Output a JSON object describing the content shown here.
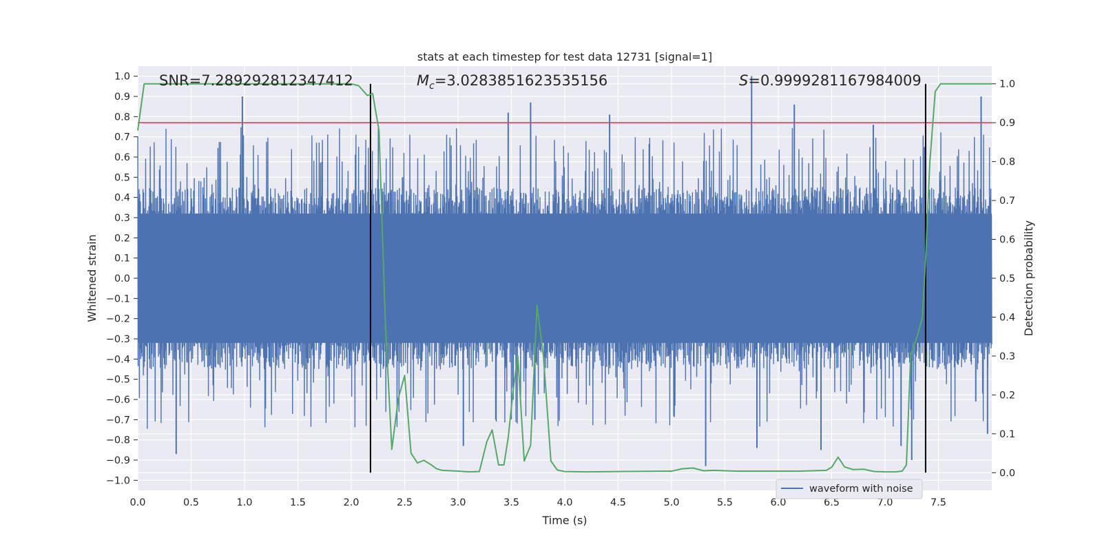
{
  "chart_data": {
    "type": "line",
    "title": "stats at each timestep for test data 12731 [signal=1]",
    "xlabel": "Time (s)",
    "ylabel": "Whitened strain",
    "y2label": "Detection probability",
    "xlim": [
      0.0,
      8.0
    ],
    "ylim": [
      -1.05,
      1.05
    ],
    "y2lim": [
      -0.0455,
      1.0455
    ],
    "grid": true,
    "x_ticks": [
      "0.0",
      "0.5",
      "1.0",
      "1.5",
      "2.0",
      "2.5",
      "3.0",
      "3.5",
      "4.0",
      "4.5",
      "5.0",
      "5.5",
      "6.0",
      "6.5",
      "7.0",
      "7.5"
    ],
    "y_ticks": [
      "1.0",
      "0.9",
      "0.8",
      "0.7",
      "0.6",
      "0.5",
      "0.4",
      "0.3",
      "0.2",
      "0.1",
      "0.0",
      "−0.1",
      "−0.2",
      "−0.3",
      "−0.4",
      "−0.5",
      "−0.6",
      "−0.7",
      "−0.8",
      "−0.9",
      "−1.0"
    ],
    "y2_ticks": [
      "1.0",
      "0.9",
      "0.8",
      "0.7",
      "0.6",
      "0.5",
      "0.4",
      "0.3",
      "0.2",
      "0.1",
      "0.0"
    ],
    "annotations": {
      "snr": "SNR=7.289292812347412",
      "mc_symbol": "M",
      "mc_sub": "c",
      "mc_value": "=3.0283851623535156",
      "s_symbol": "S",
      "s_value": "=0.9999281167984009"
    },
    "threshold": 0.9,
    "vlines": [
      2.18,
      7.38
    ],
    "legend": {
      "label": "waveform with noise",
      "position": "lower-right"
    },
    "colors": {
      "waveform": "#4c72b0",
      "probability": "#55a868",
      "threshold": "#c44e52",
      "vline": "#000000",
      "background": "#eaeaf2",
      "grid": "#ffffff"
    },
    "series": [
      {
        "name": "waveform with noise",
        "envelope": {
          "max_positive": 1.0,
          "max_negative": -0.93,
          "typical_range": [
            -0.45,
            0.45
          ]
        },
        "spikes": [
          [
            0.36,
            -0.87
          ],
          [
            0.98,
            0.9
          ],
          [
            1.03,
            -0.38
          ],
          [
            2.22,
            -0.38
          ],
          [
            2.48,
            0.5
          ],
          [
            3.05,
            -0.83
          ],
          [
            3.47,
            0.82
          ],
          [
            3.68,
            0.87
          ],
          [
            3.72,
            -0.7
          ],
          [
            4.42,
            0.81
          ],
          [
            5.32,
            -0.93
          ],
          [
            5.75,
            1.0
          ],
          [
            5.8,
            -0.84
          ],
          [
            6.15,
            0.86
          ],
          [
            6.4,
            -0.85
          ],
          [
            6.89,
            0.76
          ],
          [
            7.15,
            -0.83
          ],
          [
            7.25,
            -0.9
          ],
          [
            7.37,
            0.65
          ],
          [
            7.85,
            -0.61
          ],
          [
            7.9,
            0.9
          ],
          [
            7.96,
            -0.77
          ]
        ]
      },
      {
        "name": "",
        "axis": "right",
        "x": [
          0.0,
          0.06,
          0.2,
          0.5,
          1.0,
          1.5,
          2.0,
          2.07,
          2.15,
          2.2,
          2.26,
          2.32,
          2.38,
          2.44,
          2.5,
          2.56,
          2.62,
          2.68,
          2.75,
          2.8,
          2.85,
          3.0,
          3.1,
          3.2,
          3.27,
          3.32,
          3.38,
          3.43,
          3.47,
          3.52,
          3.56,
          3.62,
          3.68,
          3.74,
          3.8,
          3.87,
          3.93,
          4.0,
          4.2,
          4.5,
          5.0,
          5.1,
          5.2,
          5.3,
          5.4,
          5.6,
          5.9,
          6.2,
          6.45,
          6.5,
          6.56,
          6.62,
          6.7,
          6.8,
          6.9,
          7.0,
          7.1,
          7.16,
          7.2,
          7.24,
          7.3,
          7.35,
          7.38,
          7.42,
          7.47,
          7.52,
          7.7,
          8.0
        ],
        "y": [
          0.88,
          1.0,
          1.0,
          1.0,
          1.0,
          1.0,
          1.0,
          0.995,
          0.97,
          0.975,
          0.88,
          0.38,
          0.06,
          0.19,
          0.25,
          0.05,
          0.025,
          0.032,
          0.02,
          0.01,
          0.006,
          0.004,
          0.002,
          0.003,
          0.08,
          0.11,
          0.02,
          0.02,
          0.09,
          0.22,
          0.3,
          0.03,
          0.07,
          0.43,
          0.3,
          0.03,
          0.007,
          0.003,
          0.002,
          0.003,
          0.004,
          0.01,
          0.012,
          0.005,
          0.006,
          0.004,
          0.004,
          0.004,
          0.006,
          0.014,
          0.04,
          0.015,
          0.008,
          0.009,
          0.003,
          0.002,
          0.002,
          0.004,
          0.02,
          0.3,
          0.35,
          0.4,
          0.55,
          0.8,
          0.98,
          1.0,
          1.0,
          1.0
        ]
      }
    ]
  }
}
